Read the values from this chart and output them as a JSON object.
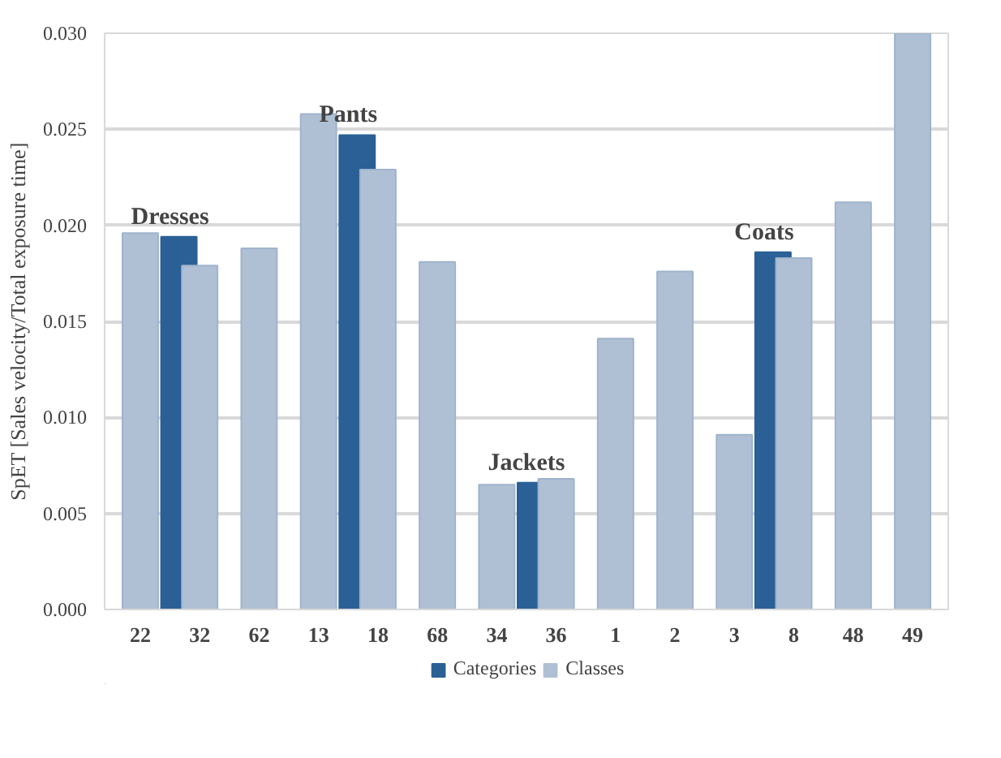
{
  "chart_data": {
    "type": "bar",
    "ylabel": "SpET [Sales velocity/Total exposure time]",
    "categories": [
      "22",
      "32",
      "62",
      "13",
      "18",
      "68",
      "34",
      "36",
      "1",
      "2",
      "3",
      "8",
      "48",
      "49"
    ],
    "series": [
      {
        "name": "Categories",
        "color": "#2a6096",
        "values": [
          null,
          0.0194,
          null,
          null,
          0.0247,
          null,
          null,
          0.0066,
          null,
          null,
          null,
          0.0186,
          null,
          null
        ]
      },
      {
        "name": "Classes",
        "color": "#b0c0d4",
        "values": [
          0.0196,
          0.0179,
          0.0188,
          0.0258,
          0.0229,
          0.0181,
          0.0065,
          0.0068,
          0.0141,
          0.0176,
          0.0091,
          0.0183,
          0.0212,
          0.03
        ]
      }
    ],
    "annotations": [
      {
        "text": "Dresses",
        "x": "32",
        "y": 0.0194
      },
      {
        "text": "Pants",
        "x": "18",
        "y": 0.0247
      },
      {
        "text": "Jackets",
        "x": "36",
        "y": 0.0066
      },
      {
        "text": "Coats",
        "x": "8",
        "y": 0.0186
      }
    ],
    "ylim": [
      0,
      0.03
    ],
    "yticks": [
      {
        "value": 0,
        "label": "0.000"
      },
      {
        "value": 0.005,
        "label": "0.005"
      },
      {
        "value": 0.01,
        "label": "0.010"
      },
      {
        "value": 0.015,
        "label": "0.015"
      },
      {
        "value": 0.02,
        "label": "0.020"
      },
      {
        "value": 0.025,
        "label": "0.025"
      },
      {
        "value": 0.03,
        "label": "0.030"
      }
    ],
    "grid": "y",
    "legend": "bottom"
  }
}
